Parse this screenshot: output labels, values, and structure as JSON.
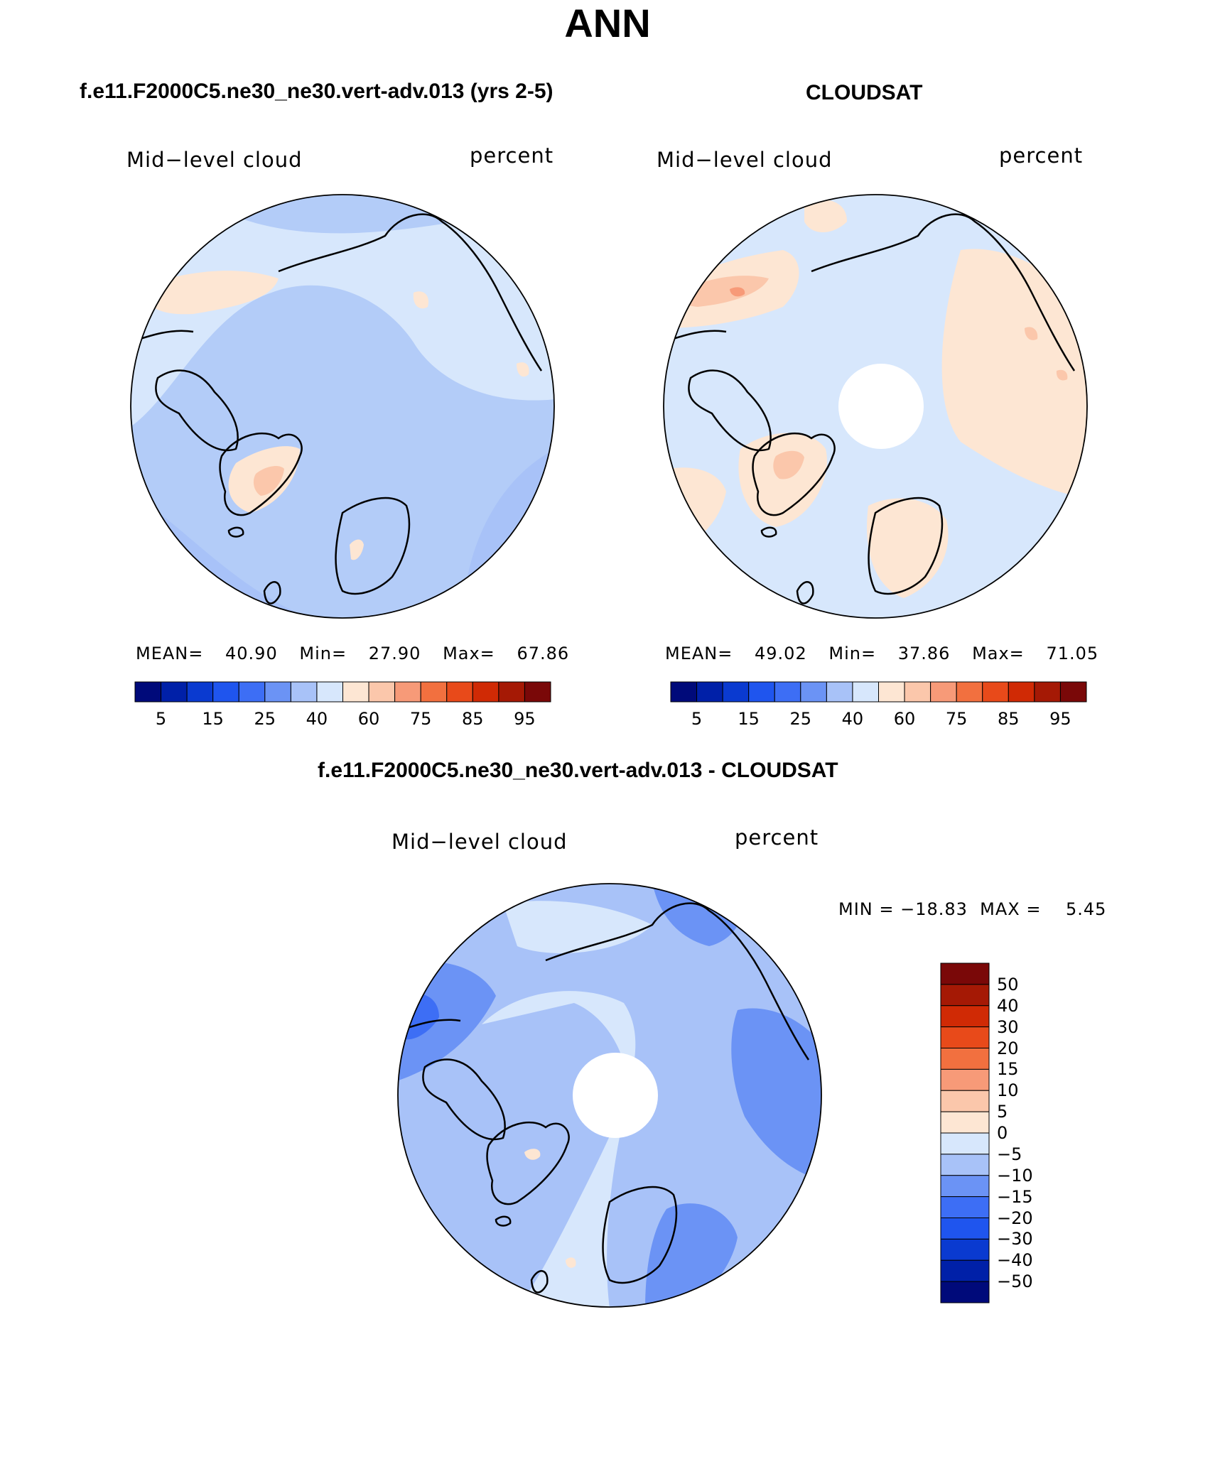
{
  "title": "ANN",
  "panels": [
    {
      "id": "model",
      "heading": "f.e11.F2000C5.ne30_ne30.vert-adv.013 (yrs 2-5)",
      "variable": "Mid−level cloud",
      "units": "percent",
      "stats": {
        "mean_label": "MEAN=",
        "mean": "40.90",
        "min_label": "Min=",
        "min": "27.90",
        "max_label": "Max=",
        "max": "67.86"
      },
      "colorbar_labels": [
        "5",
        "15",
        "25",
        "40",
        "60",
        "75",
        "85",
        "95"
      ]
    },
    {
      "id": "obs",
      "heading": "CLOUDSAT",
      "variable": "Mid−level cloud",
      "units": "percent",
      "stats": {
        "mean_label": "MEAN=",
        "mean": "49.02",
        "min_label": "Min=",
        "min": "37.86",
        "max_label": "Max=",
        "max": "71.05"
      },
      "colorbar_labels": [
        "5",
        "15",
        "25",
        "40",
        "60",
        "75",
        "85",
        "95"
      ]
    },
    {
      "id": "diff",
      "heading": "f.e11.F2000C5.ne30_ne30.vert-adv.013 - CLOUDSAT",
      "variable": "Mid−level cloud",
      "units": "percent",
      "minmax": "MIN = −18.83  MAX =    5.45",
      "colorbar_labels": [
        "50",
        "40",
        "30",
        "20",
        "15",
        "10",
        "5",
        "0",
        "−5",
        "−10",
        "−15",
        "−20",
        "−30",
        "−40",
        "−50"
      ]
    }
  ],
  "palettes": {
    "abs": [
      "#000a7a",
      "#0020a8",
      "#0a3ad0",
      "#1f55ee",
      "#3d6ef5",
      "#6b93f5",
      "#a8c2f8",
      "#d7e7fc",
      "#fde6d3",
      "#fbc7ab",
      "#f79a78",
      "#f2703f",
      "#e84a1a",
      "#d02a05",
      "#a51905",
      "#7a0808"
    ],
    "diff": [
      "#000a7a",
      "#0020a8",
      "#0a3ad0",
      "#1f55ee",
      "#3d6ef5",
      "#6b93f5",
      "#a8c2f8",
      "#d7e7fc",
      "#fde6d3",
      "#fbc7ab",
      "#f79a78",
      "#f2703f",
      "#e84a1a",
      "#d02a05",
      "#a51905",
      "#7a0808"
    ],
    "map_bg_model": "#d7e7fc",
    "map_mid_model": "#b3ccf8",
    "map_bg_obs": "#d7e7fc",
    "map_warm": "#fde6d3",
    "map_warm2": "#fbc7ab",
    "map_bg_diff": "#a8c2f8",
    "map_dark_diff": "#6b93f5",
    "map_light_diff": "#d7e7fc"
  }
}
